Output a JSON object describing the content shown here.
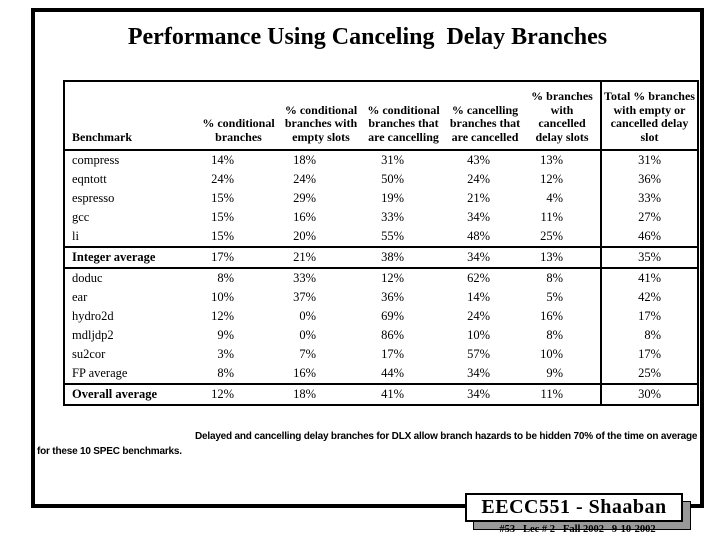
{
  "page": {
    "title": "Performance Using Canceling  Delay Branches",
    "caption": "Delayed and cancelling delay branches for DLX allow branch hazards to be hidden 70% of the time on average for these 10 SPEC benchmarks.",
    "footer": {
      "course": "EECC551 - Shaaban",
      "details": "#53   Lec # 2   Fall 2002   9-10-2002"
    }
  },
  "chart_data": {
    "type": "table",
    "title": "Performance Using Canceling Delay Branches",
    "unit": "%",
    "columns": [
      "Benchmark",
      "% conditional branches",
      "% conditional branches with empty slots",
      "% conditional branches that are cancelling",
      "% cancelling branches that are cancelled",
      "% branches with cancelled delay slots",
      "Total % branches with empty or cancelled delay slot"
    ],
    "rows": [
      {
        "benchmark": "compress",
        "values": [
          14,
          18,
          31,
          43,
          13,
          31
        ]
      },
      {
        "benchmark": "eqntott",
        "values": [
          24,
          24,
          50,
          24,
          12,
          36
        ]
      },
      {
        "benchmark": "espresso",
        "values": [
          15,
          29,
          19,
          21,
          4,
          33
        ]
      },
      {
        "benchmark": "gcc",
        "values": [
          15,
          16,
          33,
          34,
          11,
          27
        ]
      },
      {
        "benchmark": "li",
        "values": [
          15,
          20,
          55,
          48,
          25,
          46
        ]
      },
      {
        "benchmark": "Integer average",
        "values": [
          17,
          21,
          38,
          34,
          13,
          35
        ],
        "bold": true,
        "rule_above": true,
        "rule_below": true
      },
      {
        "benchmark": "doduc",
        "values": [
          8,
          33,
          12,
          62,
          8,
          41
        ]
      },
      {
        "benchmark": "ear",
        "values": [
          10,
          37,
          36,
          14,
          5,
          42
        ]
      },
      {
        "benchmark": "hydro2d",
        "values": [
          12,
          0,
          69,
          24,
          16,
          17
        ]
      },
      {
        "benchmark": "mdljdp2",
        "values": [
          9,
          0,
          86,
          10,
          8,
          8
        ]
      },
      {
        "benchmark": "su2cor",
        "values": [
          3,
          7,
          17,
          57,
          10,
          17
        ]
      },
      {
        "benchmark": "FP average",
        "values": [
          8,
          16,
          44,
          34,
          9,
          25
        ]
      },
      {
        "benchmark": "Overall average",
        "values": [
          12,
          18,
          41,
          34,
          11,
          30
        ],
        "bold": true,
        "rule_above": true
      }
    ]
  }
}
